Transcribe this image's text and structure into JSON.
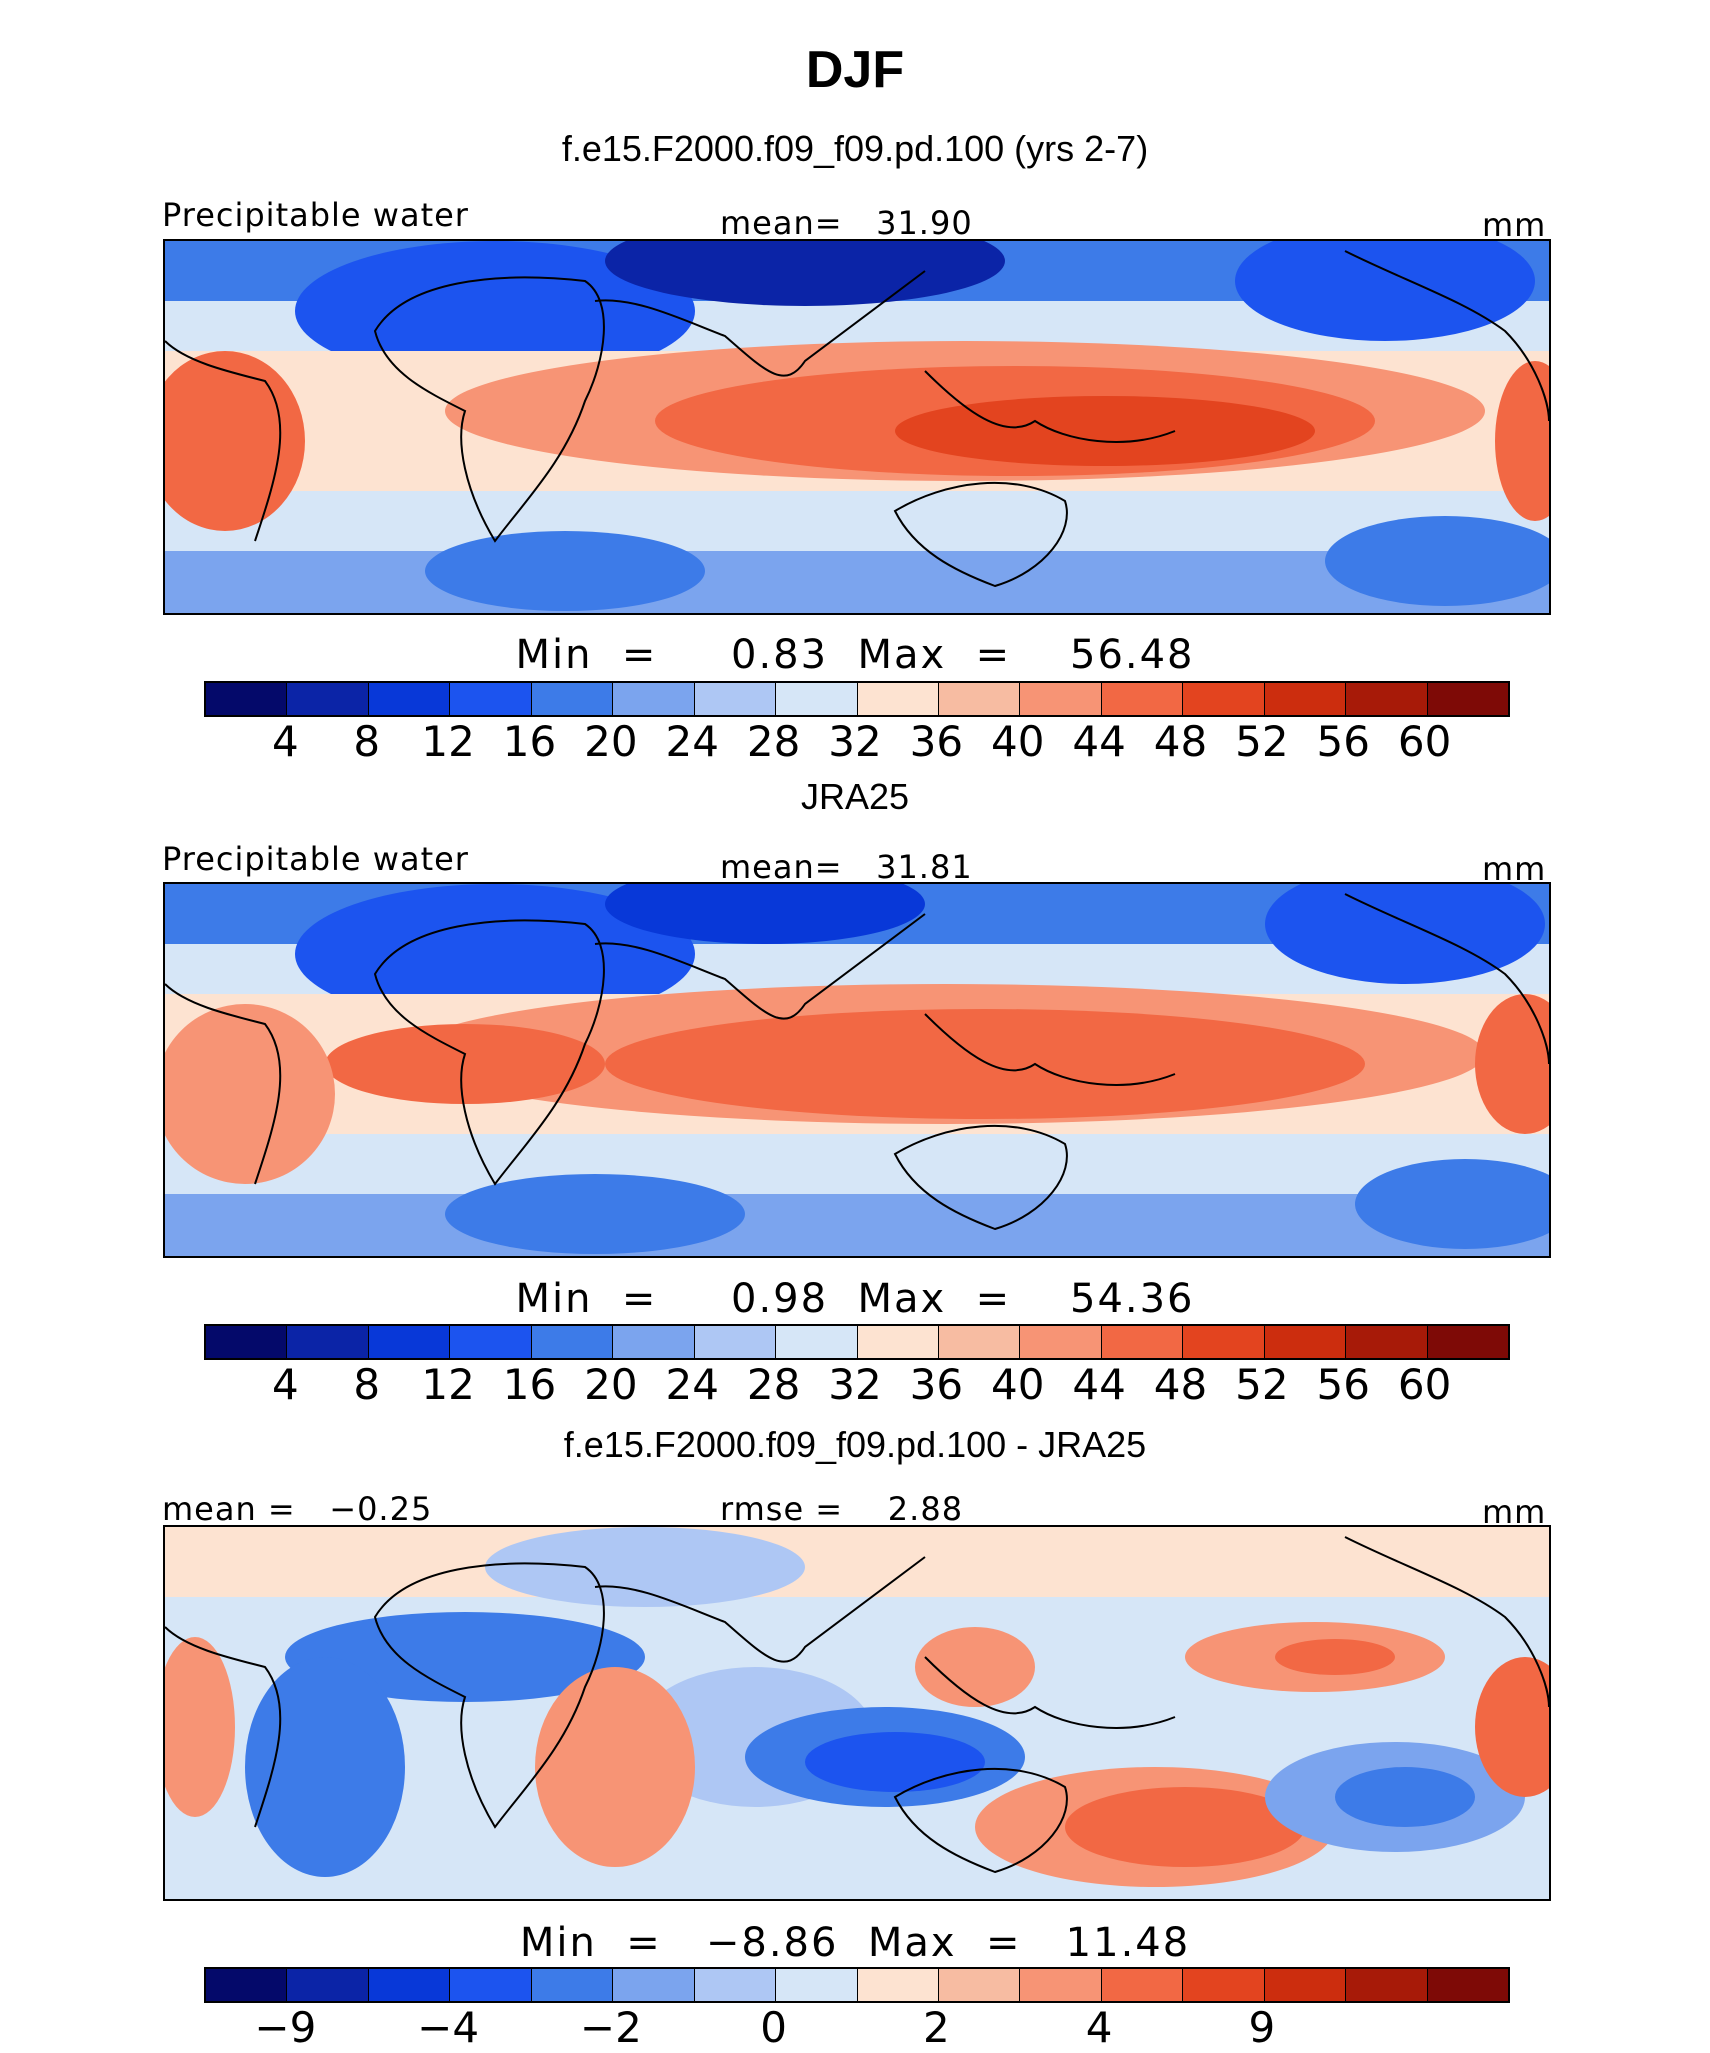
{
  "figure": {
    "title": "DJF"
  },
  "colors": {
    "abs": [
      "#04096a",
      "#0b24a7",
      "#0838d8",
      "#1c54ef",
      "#3d7be8",
      "#7ba4ee",
      "#aec7f4",
      "#d6e6f7",
      "#fde3d1",
      "#f7bca2",
      "#f79475",
      "#f26844",
      "#e3441f",
      "#cc2d0e",
      "#a71a08",
      "#7e0a06"
    ],
    "diff": [
      "#04096a",
      "#0b24a7",
      "#0838d8",
      "#1c54ef",
      "#3d7be8",
      "#7ba4ee",
      "#aec7f4",
      "#d6e6f7",
      "#fde3d1",
      "#f7bca2",
      "#f79475",
      "#f26844",
      "#e3441f",
      "#cc2d0e",
      "#a71a08",
      "#7e0a06"
    ]
  },
  "panels": [
    {
      "title": "f.e15.F2000.f09_f09.pd.100 (yrs 2-7)",
      "left_label": "Precipitable water",
      "mid_label": "mean=   31.90",
      "right_label": "mm",
      "minmax": "Min  =     0.83  Max  =    56.48",
      "ticks": [
        "4",
        "8",
        "12",
        "16",
        "20",
        "24",
        "28",
        "32",
        "36",
        "40",
        "44",
        "48",
        "52",
        "56",
        "60"
      ],
      "map": {
        "variable": "precipitable water",
        "kind": "absolute"
      }
    },
    {
      "title": "JRA25",
      "left_label": "Precipitable water",
      "mid_label": "mean=   31.81",
      "right_label": "mm",
      "minmax": "Min  =     0.98  Max  =    54.36",
      "ticks": [
        "4",
        "8",
        "12",
        "16",
        "20",
        "24",
        "28",
        "32",
        "36",
        "40",
        "44",
        "48",
        "52",
        "56",
        "60"
      ],
      "map": {
        "variable": "precipitable water",
        "kind": "absolute"
      }
    },
    {
      "title": "f.e15.F2000.f09_f09.pd.100 - JRA25",
      "left_label": "mean =   −0.25",
      "mid_label": "rmse =    2.88",
      "right_label": "mm",
      "minmax": "Min  =   −8.86  Max  =   11.48",
      "ticks": [
        "−9",
        "−4",
        "−2",
        "0",
        "2",
        "4",
        "9"
      ],
      "tick_boxes": [
        1,
        3,
        5,
        7,
        9,
        11,
        13
      ],
      "map": {
        "variable": "difference",
        "kind": "difference"
      }
    }
  ]
}
